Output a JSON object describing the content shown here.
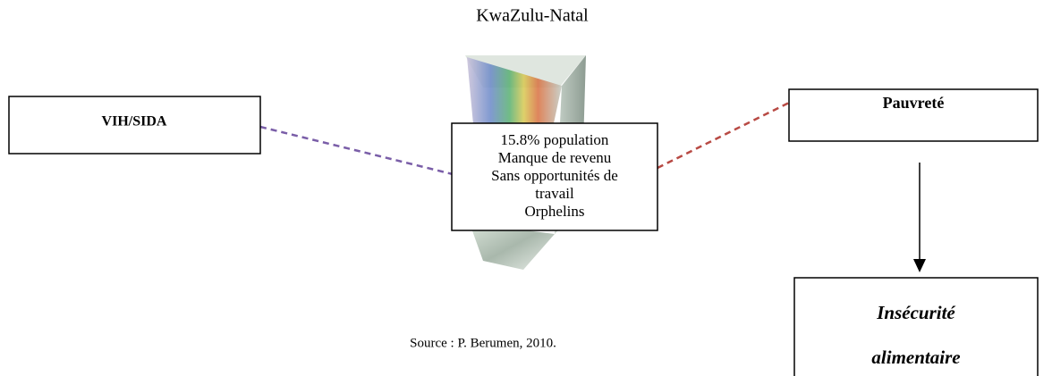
{
  "title": "KwaZulu-Natal",
  "nodes": [
    {
      "label": "VIH/SIDA"
    },
    {
      "lines": [
        "15.8% population",
        "Manque de revenu",
        "Sans opportunités de",
        "travail",
        "Orphelins"
      ]
    },
    {
      "label": "Pauvreté"
    },
    {
      "lines": [
        "Insécurité",
        "alimentaire"
      ]
    }
  ],
  "source": "Source : P. Berumen, 2010."
}
